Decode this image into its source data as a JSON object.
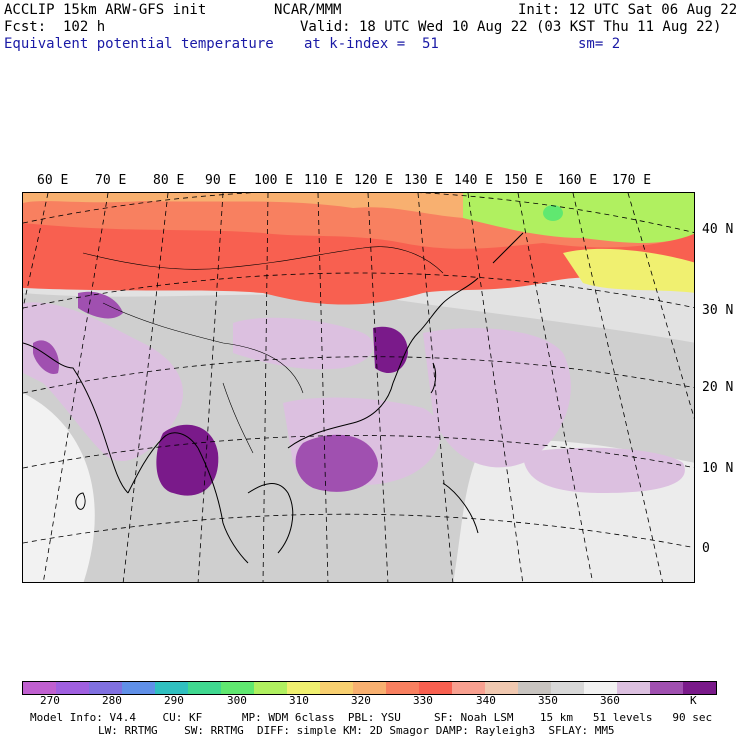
{
  "header": {
    "model": "ACCLIP 15km ARW-GFS init",
    "center": "NCAR/MMM",
    "init": "Init: 12 UTC Sat 06 Aug 22",
    "fcst": "Fcst:  102 h",
    "valid": "Valid: 18 UTC Wed 10 Aug 22 (03 KST Thu 11 Aug 22)",
    "field": "Equivalent potential temperature",
    "level": "at k-index =  51",
    "smooth": "sm= 2"
  },
  "map": {
    "lon_labels": [
      "60 E",
      "70 E",
      "80 E",
      "90 E",
      "100 E",
      "110 E",
      "120 E",
      "130 E",
      "140 E",
      "150 E",
      "160 E",
      "170 E"
    ],
    "lat_labels": [
      "40 N",
      "30 N",
      "20 N",
      "10 N",
      "0"
    ]
  },
  "colorbar": {
    "unit": "K",
    "colors": [
      "#c060d0",
      "#a060e0",
      "#8070e0",
      "#6090e8",
      "#30c0c0",
      "#40d890",
      "#60e870",
      "#b0f060",
      "#f0f070",
      "#f8d070",
      "#f8b070",
      "#f88060",
      "#f86050",
      "#f8a090",
      "#f0c8b0",
      "#c8c4c0",
      "#d8d8d8",
      "#f2f2f2",
      "#dcc0e0",
      "#a050b0",
      "#7a1a8a"
    ],
    "labels": [
      "270",
      "280",
      "290",
      "300",
      "310",
      "320",
      "330",
      "340",
      "350",
      "360"
    ]
  },
  "footer": {
    "line1": "Model Info: V4.4    CU: KF      MP: WDM 6class  PBL: YSU     SF: Noah LSM    15 km   51 levels   90 sec",
    "line2": "LW: RRTMG    SW: RRTMG  DIFF: simple KM: 2D Smagor DAMP: Rayleigh3  SFLAY: MM5"
  }
}
